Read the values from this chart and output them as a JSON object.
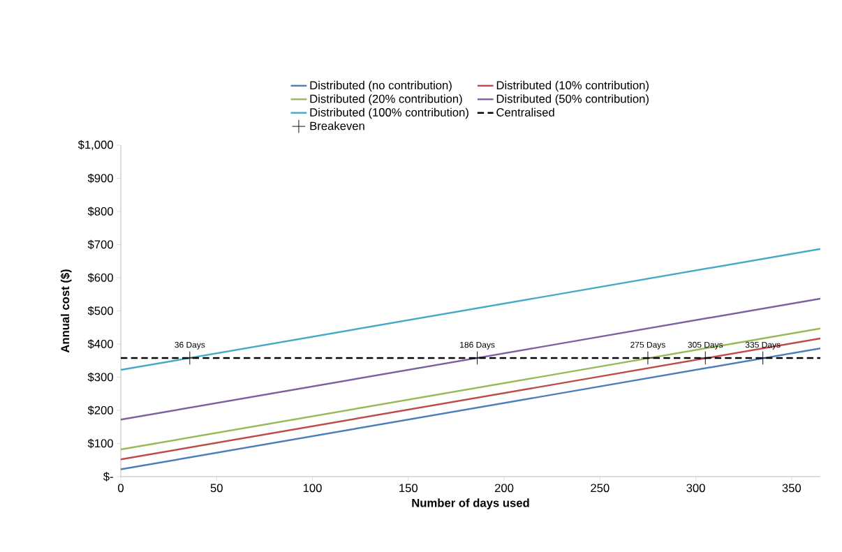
{
  "chart_data": {
    "type": "line",
    "xlabel": "Number of days used",
    "ylabel": "Annual cost ($)",
    "x": [
      0,
      365
    ],
    "xlim": [
      0,
      365
    ],
    "ylim": [
      0,
      1000
    ],
    "xticks": [
      0,
      50,
      100,
      150,
      200,
      250,
      300,
      350
    ],
    "yticks": [
      {
        "value": 0,
        "label": "$-"
      },
      {
        "value": 100,
        "label": "$100"
      },
      {
        "value": 200,
        "label": "$200"
      },
      {
        "value": 300,
        "label": "$300"
      },
      {
        "value": 400,
        "label": "$400"
      },
      {
        "value": 500,
        "label": "$500"
      },
      {
        "value": 600,
        "label": "$600"
      },
      {
        "value": 700,
        "label": "$700"
      },
      {
        "value": 800,
        "label": "$800"
      },
      {
        "value": 900,
        "label": "$900"
      },
      {
        "value": 1000,
        "label": "$1,000"
      }
    ],
    "grid": false,
    "legend": "top",
    "marker": "none",
    "line_style": "solid",
    "series": [
      {
        "name": "Distributed (no contribution)",
        "color": "#4a7ebb",
        "values": [
          22,
          387
        ]
      },
      {
        "name": "Distributed (10% contribution)",
        "color": "#be4b48",
        "values": [
          52,
          417
        ]
      },
      {
        "name": "Distributed (20% contribution)",
        "color": "#98b954",
        "values": [
          82,
          447
        ]
      },
      {
        "name": "Distributed (50% contribution)",
        "color": "#7d60a0",
        "values": [
          172,
          537
        ]
      },
      {
        "name": "Distributed (100% contribution)",
        "color": "#46aac5",
        "values": [
          322,
          687
        ]
      },
      {
        "name": "Centralised",
        "color": "#000000",
        "values": [
          358,
          358
        ],
        "line_style": "dashed"
      },
      {
        "name": "Breakeven",
        "type": "scatter",
        "color": "#000000",
        "marker": "cross",
        "x": [
          36,
          186,
          275,
          305,
          335
        ],
        "values": [
          358,
          358,
          358,
          358,
          358
        ]
      }
    ],
    "annotations": [
      {
        "text": "36 Days",
        "x": 36,
        "y": 358
      },
      {
        "text": "186 Days",
        "x": 186,
        "y": 358
      },
      {
        "text": "275 Days",
        "x": 275,
        "y": 358
      },
      {
        "text": "305 Days",
        "x": 305,
        "y": 358
      },
      {
        "text": "335 Days",
        "x": 335,
        "y": 358
      }
    ]
  }
}
